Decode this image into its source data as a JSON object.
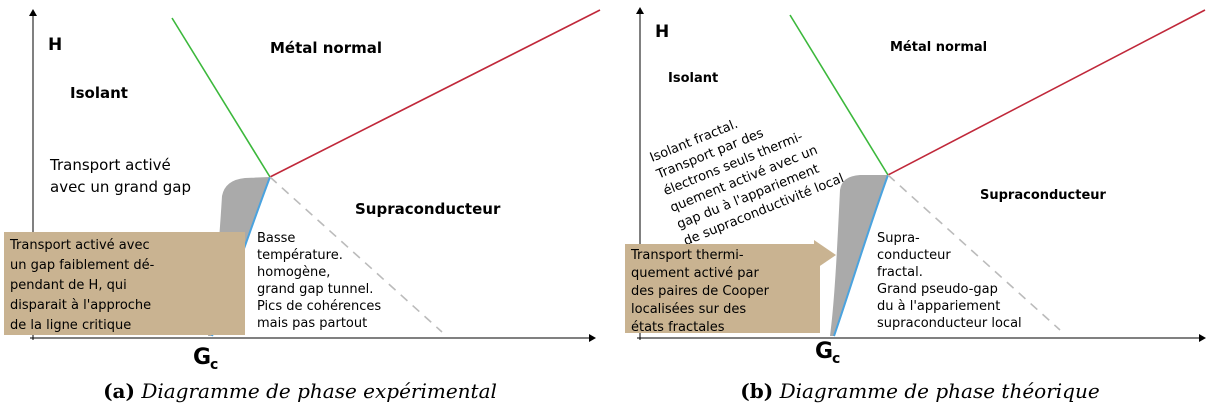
{
  "panels": [
    {
      "axis_label": "H",
      "gc": {
        "main": "G",
        "sub": "c"
      },
      "regions": {
        "insulator": "Isolant",
        "metal": "Métal normal",
        "superconductor": "Supraconducteur"
      },
      "notes": {
        "insulator": [
          "Transport activé",
          "avec un grand gap"
        ],
        "box": [
          "Transport activé avec",
          "un gap faiblement dé-",
          "pendant de H, qui",
          "disparait à l'approche",
          "de la ligne critique"
        ],
        "superconductor": [
          "Basse",
          "température.",
          "homogène,",
          "grand gap tunnel.",
          "Pics de cohérences",
          "mais pas partout"
        ]
      },
      "caption": {
        "label": "(a)",
        "text": "Diagramme de phase expérimental"
      }
    },
    {
      "axis_label": "H",
      "gc": {
        "main": "G",
        "sub": "c"
      },
      "regions": {
        "insulator": "Isolant",
        "metal": "Métal normal",
        "superconductor": "Supraconducteur"
      },
      "notes": {
        "insulator": [
          "Isolant fractal.",
          "Transport par des",
          "électrons seuls thermi-",
          "quement activé avec un",
          "gap du à l'appariement",
          "de supraconductivité local"
        ],
        "box": [
          "Transport thermi-",
          "quement activé par",
          "des paires de Cooper",
          "localisées sur des",
          "états fractales"
        ],
        "superconductor": [
          "Supra-",
          "conducteur",
          "fractal.",
          "Grand pseudo-gap",
          "du à l'appariement",
          "supraconducteur local"
        ]
      },
      "caption": {
        "label": "(b)",
        "text": "Diagramme de phase théorique"
      }
    }
  ]
}
